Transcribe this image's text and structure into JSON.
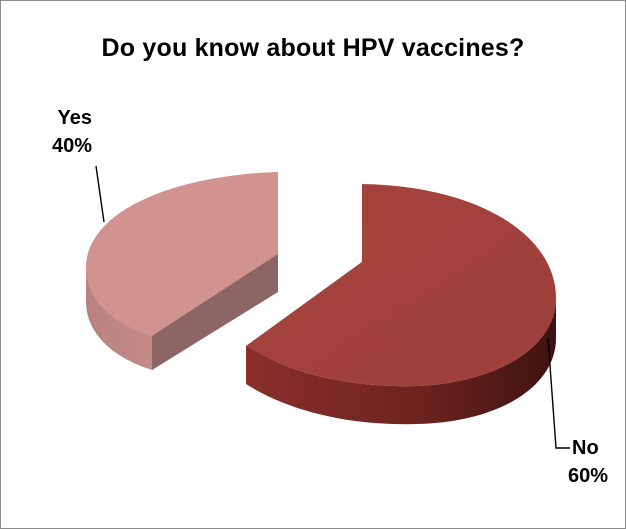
{
  "chart_data": {
    "type": "pie",
    "title": "Do you know about HPV vaccines?",
    "slices": [
      {
        "label": "Yes",
        "value": 40,
        "pct_label": "40%",
        "color": "#d29290"
      },
      {
        "label": "No",
        "value": 60,
        "pct_label": "60%",
        "color": "#a54541"
      }
    ],
    "legend": "none",
    "style": "3d-exploded"
  }
}
